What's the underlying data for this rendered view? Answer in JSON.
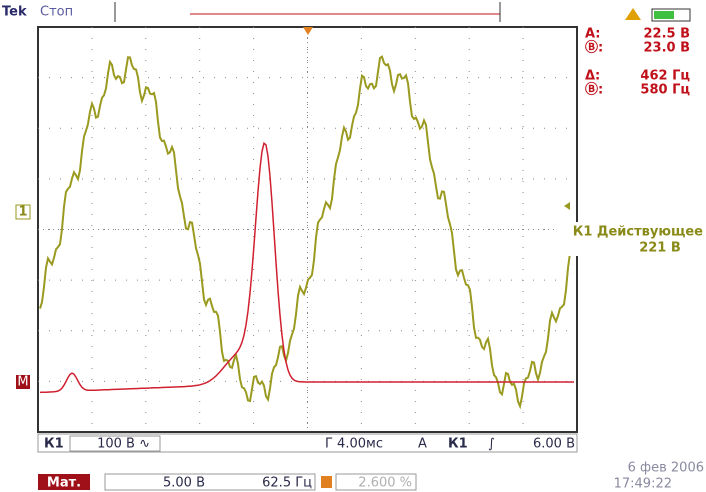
{
  "header": {
    "brand": "Tek",
    "status": "Стоп"
  },
  "cursors": {
    "a_label": "A:",
    "a_value": "22.5 В",
    "b_label": "Ⓑ:",
    "b_value": "23.0 В",
    "delta_label": "Δ:",
    "delta_value": "462 Гц",
    "freq_label": "Ⓑ:",
    "freq_value": "580 Гц"
  },
  "measurement": {
    "label": "К1 Действующее",
    "value": "221 В"
  },
  "markers": {
    "channel": "1",
    "math": "M"
  },
  "status_bar": {
    "channel": "К1",
    "scale": "100 В ∿",
    "timebase": "Г 4.00мс",
    "trigger_label": "A",
    "trigger_channel": "К1",
    "trigger_slope": "∫",
    "trigger_level": "6.00 В"
  },
  "math_bar": {
    "label": "Мат.",
    "scale": "5.00 В",
    "frequency": "62.5 Гц",
    "position": "2.600 %"
  },
  "timestamp": {
    "date": "6 фев 2006",
    "time": "17:49:22"
  }
}
